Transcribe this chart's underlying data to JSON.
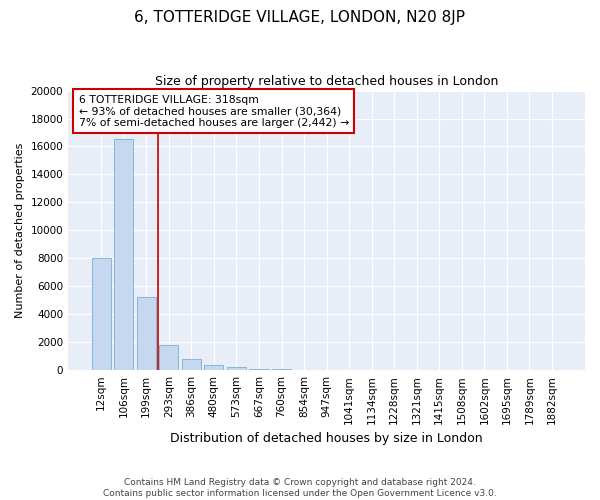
{
  "title": "6, TOTTERIDGE VILLAGE, LONDON, N20 8JP",
  "subtitle": "Size of property relative to detached houses in London",
  "xlabel": "Distribution of detached houses by size in London",
  "ylabel": "Number of detached properties",
  "categories": [
    "12sqm",
    "106sqm",
    "199sqm",
    "293sqm",
    "386sqm",
    "480sqm",
    "573sqm",
    "667sqm",
    "760sqm",
    "854sqm",
    "947sqm",
    "1041sqm",
    "1134sqm",
    "1228sqm",
    "1321sqm",
    "1415sqm",
    "1508sqm",
    "1602sqm",
    "1695sqm",
    "1789sqm",
    "1882sqm"
  ],
  "values": [
    8000,
    16500,
    5200,
    1800,
    800,
    350,
    230,
    100,
    50,
    0,
    0,
    0,
    0,
    0,
    0,
    0,
    0,
    0,
    0,
    0,
    0
  ],
  "bar_color": "#c5d8f0",
  "bar_edge_color": "#7aafd4",
  "background_color": "#e8eef8",
  "grid_color": "#ffffff",
  "vline_x_pos": 2.5,
  "vline_color": "#cc0000",
  "annotation_text": "6 TOTTERIDGE VILLAGE: 318sqm\n← 93% of detached houses are smaller (30,364)\n7% of semi-detached houses are larger (2,442) →",
  "annotation_box_color": "#cc0000",
  "footer_line1": "Contains HM Land Registry data © Crown copyright and database right 2024.",
  "footer_line2": "Contains public sector information licensed under the Open Government Licence v3.0.",
  "ylim": [
    0,
    20000
  ],
  "yticks": [
    0,
    2000,
    4000,
    6000,
    8000,
    10000,
    12000,
    14000,
    16000,
    18000,
    20000
  ],
  "title_fontsize": 11,
  "subtitle_fontsize": 9,
  "ylabel_fontsize": 8,
  "xlabel_fontsize": 9,
  "tick_fontsize": 7.5,
  "footer_fontsize": 6.5
}
